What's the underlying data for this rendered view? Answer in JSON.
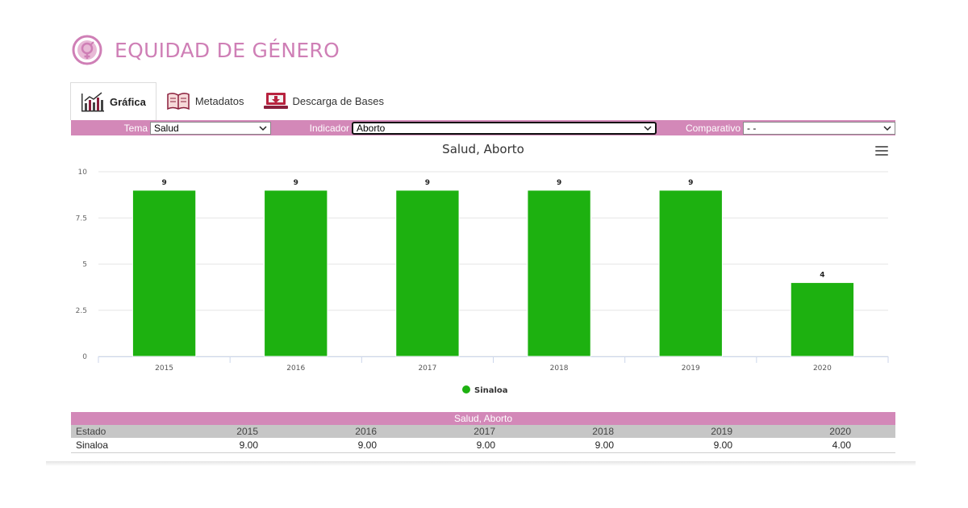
{
  "header": {
    "title": "EQUIDAD DE GÉNERO",
    "logo_icon": "gender-equality-icon",
    "accent": "#cf7fb6"
  },
  "tabs": [
    {
      "label": "Gráfica",
      "icon": "bar-chart-icon",
      "active": true
    },
    {
      "label": "Metadatos",
      "icon": "book-icon",
      "active": false
    },
    {
      "label": "Descarga de Bases",
      "icon": "download-laptop-icon",
      "active": false
    }
  ],
  "filters": {
    "tema_label": "Tema",
    "tema_value": "Salud",
    "indicador_label": "Indicador",
    "indicador_value": "Aborto",
    "comparativo_label": "Comparativo",
    "comparativo_value": "- -",
    "bar_color": "#d388b8"
  },
  "chart_data": {
    "type": "bar",
    "title": "Salud, Aborto",
    "categories": [
      "2015",
      "2016",
      "2017",
      "2018",
      "2019",
      "2020"
    ],
    "series": [
      {
        "name": "Sinaloa",
        "values": [
          9,
          9,
          9,
          9,
          9,
          4
        ],
        "color": "#1db110"
      }
    ],
    "data_labels": [
      "9",
      "9",
      "9",
      "9",
      "9",
      "4"
    ],
    "yticks": [
      "0",
      "2.5",
      "5",
      "7.5",
      "10"
    ],
    "ylim": [
      0,
      10
    ],
    "xlabel": "",
    "ylabel": "",
    "grid": true,
    "legend": "bottom-center"
  },
  "table": {
    "caption": "Salud, Aborto",
    "header_state": "Estado",
    "years": [
      "2015",
      "2016",
      "2017",
      "2018",
      "2019",
      "2020"
    ],
    "rows": [
      {
        "state": "Sinaloa",
        "values": [
          "9.00",
          "9.00",
          "9.00",
          "9.00",
          "9.00",
          "4.00"
        ]
      }
    ]
  }
}
